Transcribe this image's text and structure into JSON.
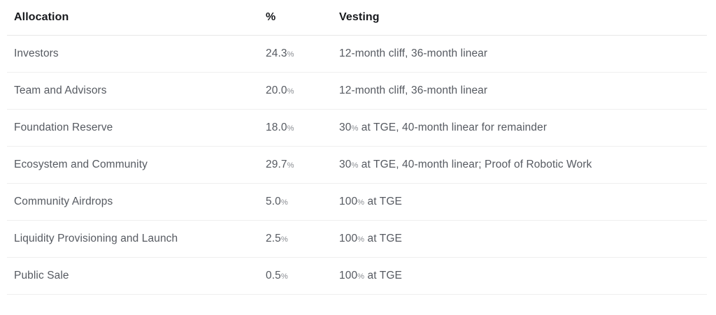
{
  "table": {
    "columns": {
      "allocation": "Allocation",
      "percent": "%",
      "vesting": "Vesting"
    },
    "rows": [
      {
        "allocation": "Investors",
        "percent": "24.3%",
        "vesting": "12-month cliff, 36-month linear"
      },
      {
        "allocation": "Team and Advisors",
        "percent": "20.0%",
        "vesting": "12-month cliff, 36-month linear"
      },
      {
        "allocation": "Foundation Reserve",
        "percent": "18.0%",
        "vesting": "30% at TGE, 40-month linear for remainder"
      },
      {
        "allocation": "Ecosystem and Community",
        "percent": "29.7%",
        "vesting": "30% at TGE, 40-month linear; Proof of Robotic Work"
      },
      {
        "allocation": "Community Airdrops",
        "percent": "5.0%",
        "vesting": "100% at TGE"
      },
      {
        "allocation": "Liquidity Provisioning and Launch",
        "percent": "2.5%",
        "vesting": "100% at TGE"
      },
      {
        "allocation": "Public Sale",
        "percent": "0.5%",
        "vesting": "100% at TGE"
      }
    ]
  },
  "colors": {
    "header_text": "#17191d",
    "body_text": "#565a61",
    "divider": "#ebebeb",
    "background": "#ffffff"
  }
}
